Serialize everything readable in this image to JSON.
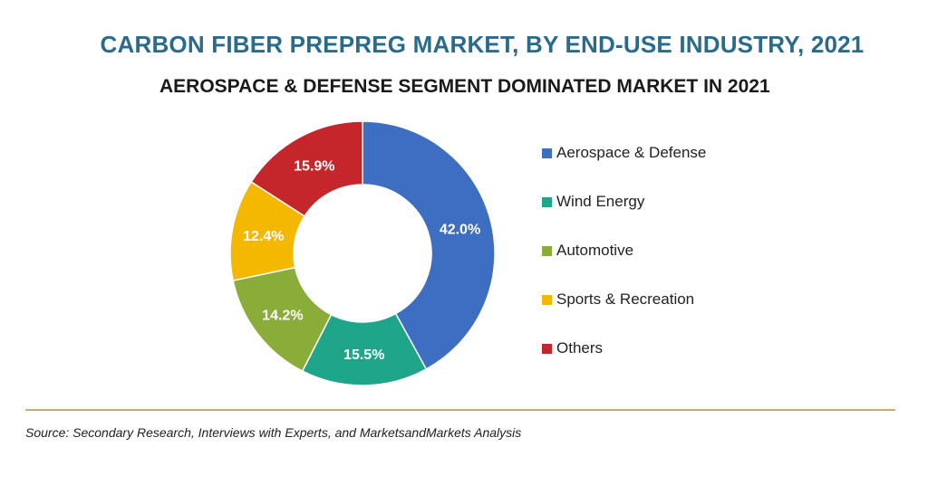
{
  "chart_data": {
    "type": "pie",
    "title": "CARBON FIBER PREPREG MARKET, BY END-USE INDUSTRY, 2021",
    "subtitle": "AEROSPACE & DEFENSE SEGMENT DOMINATED MARKET IN 2021",
    "categories": [
      "Aerospace & Defense",
      "Wind Energy",
      "Automotive",
      "Sports & Recreation",
      "Others"
    ],
    "values": [
      42.0,
      15.5,
      14.2,
      12.4,
      15.9
    ],
    "data_labels": [
      "42.0%",
      "15.5%",
      "14.2%",
      "12.4%",
      "15.9%"
    ],
    "colors": [
      "#3d6ec2",
      "#1fa58a",
      "#8aad3a",
      "#f5b800",
      "#c4262b"
    ],
    "donut": true,
    "legend_position": "right"
  },
  "source": "Source: Secondary Research, Interviews with Experts, and MarketsandMarkets Analysis"
}
